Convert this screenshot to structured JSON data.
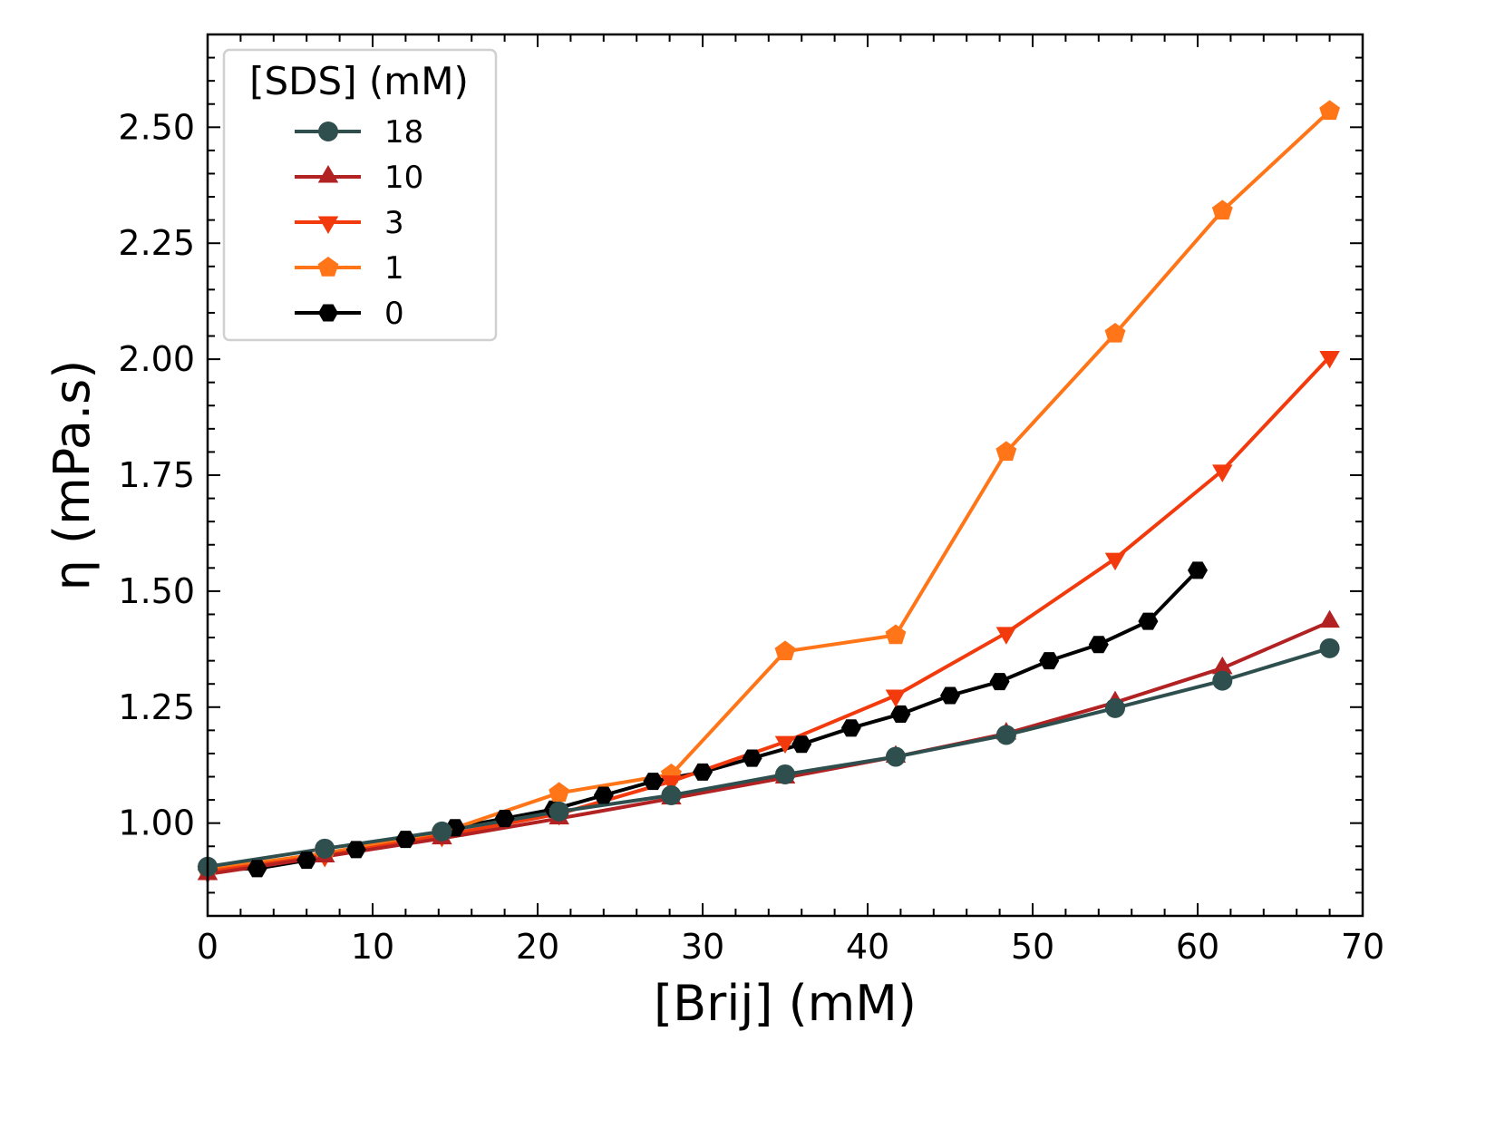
{
  "chart_data": {
    "type": "line",
    "xlabel": "[Brij] (mM)",
    "ylabel": "η (mPa.s)",
    "xlim": [
      0,
      70
    ],
    "ylim": [
      0.8,
      2.7
    ],
    "xticks": [
      0,
      10,
      20,
      30,
      40,
      50,
      60,
      70
    ],
    "xtick_labels": [
      "0",
      "10",
      "20",
      "30",
      "40",
      "50",
      "60",
      "70"
    ],
    "yticks": [
      1.0,
      1.25,
      1.5,
      1.75,
      2.0,
      2.25,
      2.5
    ],
    "ytick_labels": [
      "1.00",
      "1.25",
      "1.50",
      "1.75",
      "2.00",
      "2.25",
      "2.50"
    ],
    "grid": false,
    "legend": {
      "title": "[SDS] (mM)",
      "placement": "top-left"
    },
    "series": [
      {
        "name": "18",
        "color": "#2f4f4f",
        "marker": "circle",
        "x": [
          0,
          7.1,
          14.2,
          21.3,
          28.1,
          35.0,
          41.7,
          48.4,
          55.0,
          61.5,
          68.0
        ],
        "y": [
          0.906,
          0.945,
          0.982,
          1.025,
          1.06,
          1.105,
          1.143,
          1.19,
          1.248,
          1.307,
          1.377
        ]
      },
      {
        "name": "10",
        "color": "#b22222",
        "marker": "triangle-up",
        "x": [
          0,
          7.1,
          14.2,
          21.3,
          28.1,
          35.0,
          41.7,
          48.4,
          55.0,
          61.5,
          68.0
        ],
        "y": [
          0.89,
          0.928,
          0.967,
          1.01,
          1.053,
          1.098,
          1.143,
          1.193,
          1.26,
          1.334,
          1.434
        ]
      },
      {
        "name": "3",
        "color": "#f23a0c",
        "marker": "triangle-down",
        "x": [
          0,
          7.1,
          14.2,
          21.3,
          28.1,
          35.0,
          41.7,
          48.4,
          55.0,
          61.5,
          68.0
        ],
        "y": [
          0.895,
          0.93,
          0.973,
          1.02,
          1.09,
          1.175,
          1.275,
          1.41,
          1.57,
          1.76,
          2.005
        ]
      },
      {
        "name": "1",
        "color": "#ff7518",
        "marker": "pentagon",
        "x": [
          0,
          7.1,
          14.2,
          21.3,
          28.1,
          35.0,
          41.7,
          48.4,
          55.0,
          61.5,
          68.0
        ],
        "y": [
          0.9,
          0.935,
          0.98,
          1.065,
          1.105,
          1.37,
          1.405,
          1.8,
          2.055,
          2.32,
          2.535
        ]
      },
      {
        "name": "0",
        "color": "#000000",
        "marker": "hexagon",
        "x": [
          0,
          3,
          6,
          9,
          12,
          15,
          18,
          21,
          24,
          27,
          30,
          33,
          36,
          39,
          42,
          45,
          48,
          51,
          54,
          57,
          60
        ],
        "y": [
          0.9,
          0.902,
          0.92,
          0.943,
          0.965,
          0.99,
          1.01,
          1.03,
          1.06,
          1.09,
          1.11,
          1.14,
          1.17,
          1.205,
          1.235,
          1.275,
          1.305,
          1.35,
          1.385,
          1.435,
          1.545
        ]
      }
    ]
  }
}
